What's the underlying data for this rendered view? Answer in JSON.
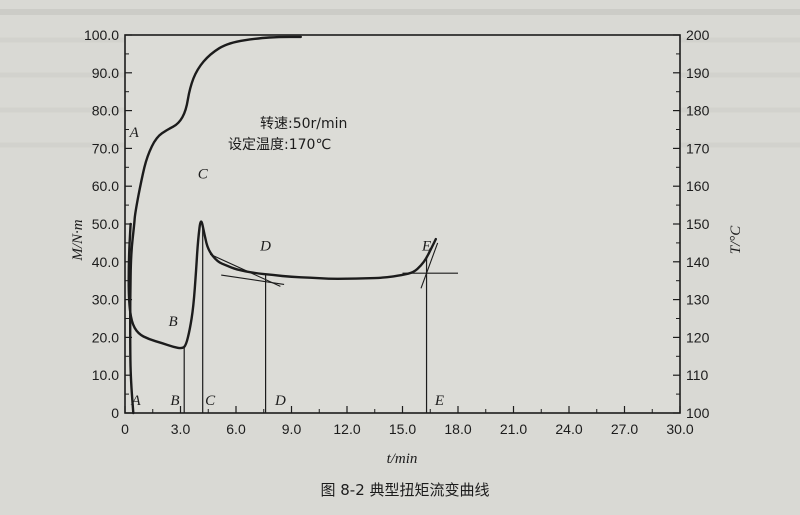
{
  "chart_data": {
    "type": "line",
    "xlabel": "t/min",
    "ylabel_left": "M/N·m",
    "ylabel_right": "T/°C",
    "x_ticks": [
      "0",
      "3.0",
      "6.0",
      "9.0",
      "12.0",
      "15.0",
      "18.0",
      "21.0",
      "24.0",
      "27.0",
      "30.0"
    ],
    "y_left_ticks": [
      "0",
      "10.0",
      "20.0",
      "30.0",
      "40.0",
      "50.0",
      "60.0",
      "70.0",
      "80.0",
      "90.0",
      "100.0"
    ],
    "y_right_ticks": [
      "100",
      "110",
      "120",
      "130",
      "140",
      "150",
      "160",
      "170",
      "180",
      "190",
      "200"
    ],
    "xlim": [
      0,
      30
    ],
    "ylim_left": [
      0,
      100
    ],
    "ylim_right": [
      100,
      200
    ],
    "annotation_line1": "转速:50r/min",
    "annotation_line2": "设定温度:170℃",
    "caption": "图 8-2    典型扭矩流变曲线",
    "point_labels": [
      {
        "label": "A",
        "x": 0.5,
        "y": 73
      },
      {
        "label": "B",
        "x": 2.6,
        "y": 23
      },
      {
        "label": "C",
        "x": 4.2,
        "y": 62
      },
      {
        "label": "D",
        "x": 7.6,
        "y": 43
      },
      {
        "label": "E",
        "x": 16.3,
        "y": 43
      }
    ],
    "region_labels": [
      {
        "label": "A",
        "x": 0.6
      },
      {
        "label": "B",
        "x": 2.7
      },
      {
        "label": "C",
        "x": 4.6
      },
      {
        "label": "D",
        "x": 8.4
      },
      {
        "label": "E",
        "x": 17.0
      }
    ],
    "vertical_markers": [
      3.2,
      4.2,
      7.6,
      16.3
    ],
    "series": [
      {
        "name": "torque",
        "axis": "left",
        "points": [
          [
            0.45,
            0
          ],
          [
            0.3,
            10
          ],
          [
            0.28,
            18
          ],
          [
            0.28,
            30
          ],
          [
            0.32,
            42
          ],
          [
            0.5,
            50
          ],
          [
            0.55,
            53
          ],
          [
            0.9,
            62
          ],
          [
            1.2,
            68
          ],
          [
            1.7,
            73
          ],
          [
            2.3,
            75
          ],
          [
            2.9,
            76.5
          ],
          [
            3.3,
            80
          ],
          [
            3.5,
            86
          ],
          [
            3.9,
            91
          ],
          [
            4.6,
            95
          ],
          [
            5.6,
            98
          ],
          [
            7.3,
            99.2
          ],
          [
            8.3,
            99.5
          ],
          [
            9.5,
            99.5
          ]
        ]
      },
      {
        "name": "temperature",
        "axis": "right",
        "points": [
          [
            0.3,
            150
          ],
          [
            0.2,
            140
          ],
          [
            0.2,
            130
          ],
          [
            0.35,
            124
          ],
          [
            0.7,
            121
          ],
          [
            1.3,
            119.5
          ],
          [
            2,
            118.5
          ],
          [
            2.6,
            117.5
          ],
          [
            3.1,
            117
          ],
          [
            3.3,
            118
          ],
          [
            3.5,
            122
          ],
          [
            3.7,
            128
          ],
          [
            3.85,
            138
          ],
          [
            3.95,
            146
          ],
          [
            4.1,
            152
          ],
          [
            4.3,
            147
          ],
          [
            4.5,
            143
          ],
          [
            5,
            140
          ],
          [
            5.5,
            139
          ],
          [
            6,
            138
          ],
          [
            7,
            137
          ],
          [
            8,
            136.5
          ],
          [
            9,
            136
          ],
          [
            10,
            135.8
          ],
          [
            11,
            135.5
          ],
          [
            12,
            135.5
          ],
          [
            13,
            135.6
          ],
          [
            14,
            135.8
          ],
          [
            15,
            136.5
          ],
          [
            15.6,
            137.2
          ],
          [
            16,
            139
          ],
          [
            16.3,
            141
          ],
          [
            16.6,
            144
          ],
          [
            16.8,
            146
          ]
        ]
      }
    ]
  }
}
